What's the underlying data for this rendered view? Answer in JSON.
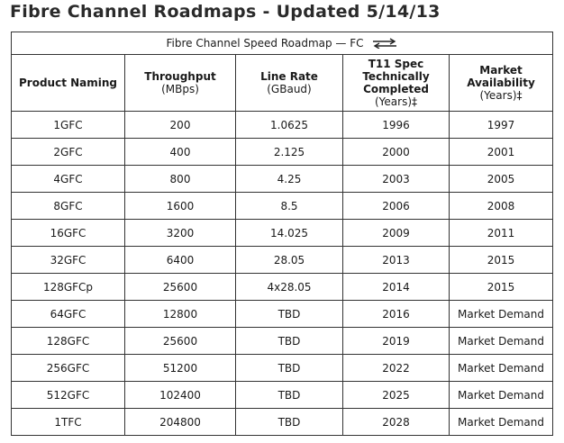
{
  "page": {
    "title": "Fibre Channel Roadmaps - Updated 5/14/13"
  },
  "table": {
    "caption": "Fibre Channel Speed Roadmap — FC",
    "caption_icon": "bidirectional-arrows-icon",
    "headers": {
      "product": {
        "main": "Product Naming"
      },
      "throughput": {
        "main": "Throughput",
        "sub": "(MBps)"
      },
      "line_rate": {
        "main": "Line Rate",
        "sub": "(GBaud)"
      },
      "t11": {
        "line1": "T11 Spec",
        "line2": "Technically",
        "line3": "Completed",
        "sub": "(Years)‡"
      },
      "market": {
        "line1": "Market",
        "line2": "Availability",
        "sub": "(Years)‡"
      }
    },
    "rows": [
      [
        "1GFC",
        "200",
        "1.0625",
        "1996",
        "1997"
      ],
      [
        "2GFC",
        "400",
        "2.125",
        "2000",
        "2001"
      ],
      [
        "4GFC",
        "800",
        "4.25",
        "2003",
        "2005"
      ],
      [
        "8GFC",
        "1600",
        "8.5",
        "2006",
        "2008"
      ],
      [
        "16GFC",
        "3200",
        "14.025",
        "2009",
        "2011"
      ],
      [
        "32GFC",
        "6400",
        "28.05",
        "2013",
        "2015"
      ],
      [
        "128GFCp",
        "25600",
        "4x28.05",
        "2014",
        "2015"
      ],
      [
        "64GFC",
        "12800",
        "TBD",
        "2016",
        "Market Demand"
      ],
      [
        "128GFC",
        "25600",
        "TBD",
        "2019",
        "Market Demand"
      ],
      [
        "256GFC",
        "51200",
        "TBD",
        "2022",
        "Market Demand"
      ],
      [
        "512GFC",
        "102400",
        "TBD",
        "2025",
        "Market Demand"
      ],
      [
        "1TFC",
        "204800",
        "TBD",
        "2028",
        "Market Demand"
      ]
    ]
  }
}
